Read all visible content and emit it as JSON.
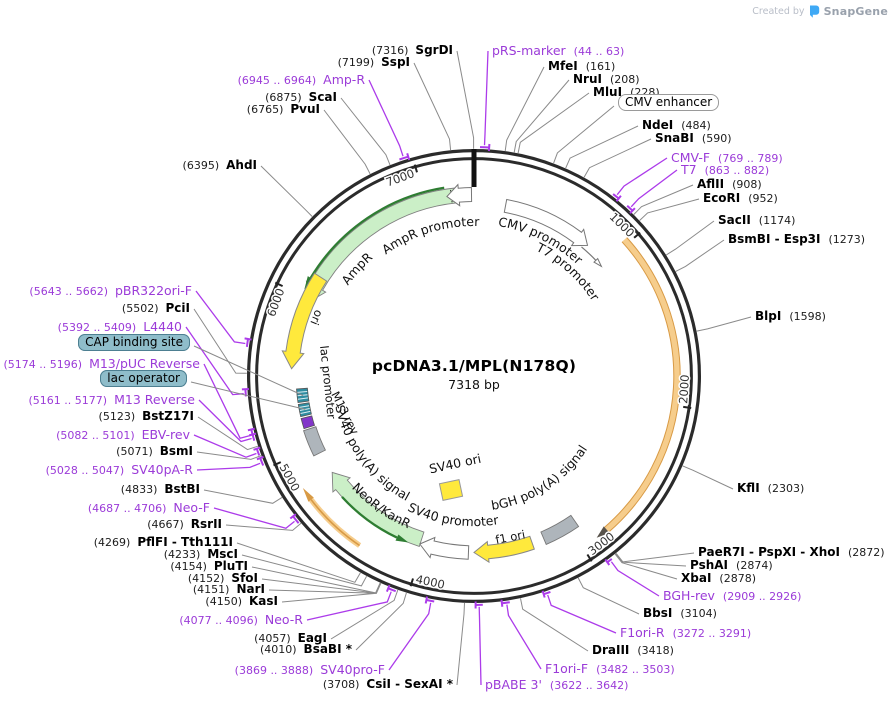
{
  "credit": {
    "prefix": "Created by",
    "brand": "SnapGene"
  },
  "plasmid": {
    "name": "pcDNA3.1/MPL(N178Q)",
    "size_label": "7318 bp"
  },
  "tick_labels": [
    "1000",
    "2000",
    "3000",
    "4000",
    "5000",
    "6000",
    "7000"
  ],
  "map_features": {
    "ampr": "AmpR",
    "ampr_promoter": "AmpR promoter",
    "cmv_promoter": "CMV promoter",
    "t7_promoter": "T7 promoter",
    "ori": "ori",
    "lac_promoter": "lac promoter",
    "m13_rev": "M13 rev",
    "sv40_polya": "SV40 poly(A) signal",
    "neor_kanr": "NeoR/KanR",
    "sv40_promoter": "SV40 promoter",
    "f1_ori": "f1 ori",
    "sv40_ori": "SV40 ori",
    "bgh_polya": "bGH poly(A) signal"
  },
  "colors": {
    "ring": "#2b2b2b",
    "enzyme_line": "#8a8a8a",
    "primer": "#9b3bd8",
    "primer_line": "#ac3bea",
    "green_fill": "#cbefc7",
    "dark_green": "#2e7d32",
    "yellow": "#ffe93c",
    "orange_band": "#f6cd8c",
    "orange_edge": "#d89a45",
    "gray_box": "#aeb5bb",
    "teal_box": "#2e8ca0",
    "purple_box": "#8236c9"
  },
  "callouts": [
    {
      "id": "sgrdi",
      "pos": "(7316)",
      "name": "SgrDI",
      "kind": "enzyme",
      "order": "pn"
    },
    {
      "id": "prs_marker",
      "name": "pRS-marker",
      "pos": "(44 .. 63)",
      "kind": "primer",
      "order": "np"
    },
    {
      "id": "sspi",
      "pos": "(7199)",
      "name": "SspI",
      "kind": "enzyme",
      "order": "pn"
    },
    {
      "id": "mfei",
      "name": "MfeI",
      "pos": "(161)",
      "kind": "enzyme",
      "order": "np"
    },
    {
      "id": "nrui",
      "name": "NruI",
      "pos": "(208)",
      "kind": "enzyme",
      "order": "np"
    },
    {
      "id": "mlui",
      "name": "MluI",
      "pos": "(228)",
      "kind": "enzyme",
      "order": "np"
    },
    {
      "id": "amp_r",
      "pos": "(6945 .. 6964)",
      "name": "Amp-R",
      "kind": "primer",
      "order": "pn"
    },
    {
      "id": "scai",
      "pos": "(6875)",
      "name": "ScaI",
      "kind": "enzyme",
      "order": "pn"
    },
    {
      "id": "pvui",
      "pos": "(6765)",
      "name": "PvuI",
      "kind": "enzyme",
      "order": "pn"
    },
    {
      "id": "cmv_enhancer",
      "name": "CMV enhancer",
      "kind": "box-white",
      "order": "np"
    },
    {
      "id": "ndei",
      "name": "NdeI",
      "pos": "(484)",
      "kind": "enzyme",
      "order": "np"
    },
    {
      "id": "snabi",
      "name": "SnaBI",
      "pos": "(590)",
      "kind": "enzyme",
      "order": "np"
    },
    {
      "id": "cmv_f",
      "name": "CMV-F",
      "pos": "(769 .. 789)",
      "kind": "primer",
      "order": "np"
    },
    {
      "id": "t7",
      "name": "T7",
      "pos": "(863 .. 882)",
      "kind": "primer",
      "order": "np"
    },
    {
      "id": "aflii",
      "name": "AflII",
      "pos": "(908)",
      "kind": "enzyme",
      "order": "np"
    },
    {
      "id": "ecori",
      "name": "EcoRI",
      "pos": "(952)",
      "kind": "enzyme",
      "order": "np"
    },
    {
      "id": "sacii",
      "name": "SacII",
      "pos": "(1174)",
      "kind": "enzyme",
      "order": "np"
    },
    {
      "id": "bsmbi",
      "name": "BsmBI - Esp3I",
      "pos": "(1273)",
      "kind": "enzyme",
      "order": "np"
    },
    {
      "id": "blpi",
      "name": "BlpI",
      "pos": "(1598)",
      "kind": "enzyme",
      "order": "np"
    },
    {
      "id": "kfli",
      "name": "KflI",
      "pos": "(2303)",
      "kind": "enzyme",
      "order": "np"
    },
    {
      "id": "ahdi",
      "pos": "(6395)",
      "name": "AhdI",
      "kind": "enzyme",
      "order": "pn"
    },
    {
      "id": "pbr322ori_f",
      "pos": "(5643 .. 5662)",
      "name": "pBR322ori-F",
      "kind": "primer",
      "order": "pn"
    },
    {
      "id": "pcii",
      "pos": "(5502)",
      "name": "PciI",
      "kind": "enzyme",
      "order": "pn"
    },
    {
      "id": "l4440",
      "pos": "(5392 .. 5409)",
      "name": "L4440",
      "kind": "primer",
      "order": "pn"
    },
    {
      "id": "cap_site",
      "name": "CAP binding site",
      "kind": "box-teal",
      "order": "np"
    },
    {
      "id": "m13_puc_rev",
      "pos": "(5174 .. 5196)",
      "name": "M13/pUC Reverse",
      "kind": "primer",
      "order": "pn"
    },
    {
      "id": "lac_operator",
      "name": "lac operator",
      "kind": "box-teal",
      "order": "np"
    },
    {
      "id": "m13_reverse",
      "pos": "(5161 .. 5177)",
      "name": "M13 Reverse",
      "kind": "primer",
      "order": "pn"
    },
    {
      "id": "bstz17i",
      "pos": "(5123)",
      "name": "BstZ17I",
      "kind": "enzyme",
      "order": "pn"
    },
    {
      "id": "ebv_rev",
      "pos": "(5082 .. 5101)",
      "name": "EBV-rev",
      "kind": "primer",
      "order": "pn"
    },
    {
      "id": "bsmi",
      "pos": "(5071)",
      "name": "BsmI",
      "kind": "enzyme",
      "order": "pn"
    },
    {
      "id": "sv40pa_r",
      "pos": "(5028 .. 5047)",
      "name": "SV40pA-R",
      "kind": "primer",
      "order": "pn"
    },
    {
      "id": "bstbi",
      "pos": "(4833)",
      "name": "BstBI",
      "kind": "enzyme",
      "order": "pn"
    },
    {
      "id": "neo_f",
      "pos": "(4687 .. 4706)",
      "name": "Neo-F",
      "kind": "primer",
      "order": "pn"
    },
    {
      "id": "rsrii",
      "pos": "(4667)",
      "name": "RsrII",
      "kind": "enzyme",
      "order": "pn"
    },
    {
      "id": "pflfi",
      "pos": "(4269)",
      "name": "PflFI - Tth111I",
      "kind": "enzyme",
      "order": "pn"
    },
    {
      "id": "msci",
      "pos": "(4233)",
      "name": "MscI",
      "kind": "enzyme",
      "order": "pn"
    },
    {
      "id": "pluti",
      "pos": "(4154)",
      "name": "PluTI",
      "kind": "enzyme",
      "order": "pn"
    },
    {
      "id": "sfoi",
      "pos": "(4152)",
      "name": "SfoI",
      "kind": "enzyme",
      "order": "pn"
    },
    {
      "id": "nari",
      "pos": "(4151)",
      "name": "NarI",
      "kind": "enzyme",
      "order": "pn"
    },
    {
      "id": "kasi",
      "pos": "(4150)",
      "name": "KasI",
      "kind": "enzyme",
      "order": "pn"
    },
    {
      "id": "neo_r",
      "pos": "(4077 .. 4096)",
      "name": "Neo-R",
      "kind": "primer",
      "order": "pn"
    },
    {
      "id": "eagi",
      "pos": "(4057)",
      "name": "EagI",
      "kind": "enzyme",
      "order": "pn"
    },
    {
      "id": "bsabi",
      "pos": "(4010)",
      "name": "BsaBI *",
      "kind": "enzyme",
      "order": "pn"
    },
    {
      "id": "sv40pro_f",
      "pos": "(3869 .. 3888)",
      "name": "SV40pro-F",
      "kind": "primer",
      "order": "pn"
    },
    {
      "id": "csii",
      "pos": "(3708)",
      "name": "CsiI - SexAI *",
      "kind": "enzyme",
      "order": "pn"
    },
    {
      "id": "pbabe3",
      "name": "pBABE 3'",
      "pos": "(3622 .. 3642)",
      "kind": "primer",
      "order": "np"
    },
    {
      "id": "f1ori_f",
      "name": "F1ori-F",
      "pos": "(3482 .. 3503)",
      "kind": "primer",
      "order": "np"
    },
    {
      "id": "draiii",
      "name": "DraIII",
      "pos": "(3418)",
      "kind": "enzyme",
      "order": "np"
    },
    {
      "id": "f1ori_r",
      "name": "F1ori-R",
      "pos": "(3272 .. 3291)",
      "kind": "primer",
      "order": "np"
    },
    {
      "id": "bbsi",
      "name": "BbsI",
      "pos": "(3104)",
      "kind": "enzyme",
      "order": "np"
    },
    {
      "id": "bgh_rev",
      "name": "BGH-rev",
      "pos": "(2909 .. 2926)",
      "kind": "primer",
      "order": "np"
    },
    {
      "id": "xbai",
      "name": "XbaI",
      "pos": "(2878)",
      "kind": "enzyme",
      "order": "np"
    },
    {
      "id": "pshai",
      "name": "PshAI",
      "pos": "(2874)",
      "kind": "enzyme",
      "order": "np"
    },
    {
      "id": "paer7i",
      "name": "PaeR7I - PspXI - XhoI",
      "pos": "(2872)",
      "kind": "enzyme",
      "order": "np"
    }
  ]
}
